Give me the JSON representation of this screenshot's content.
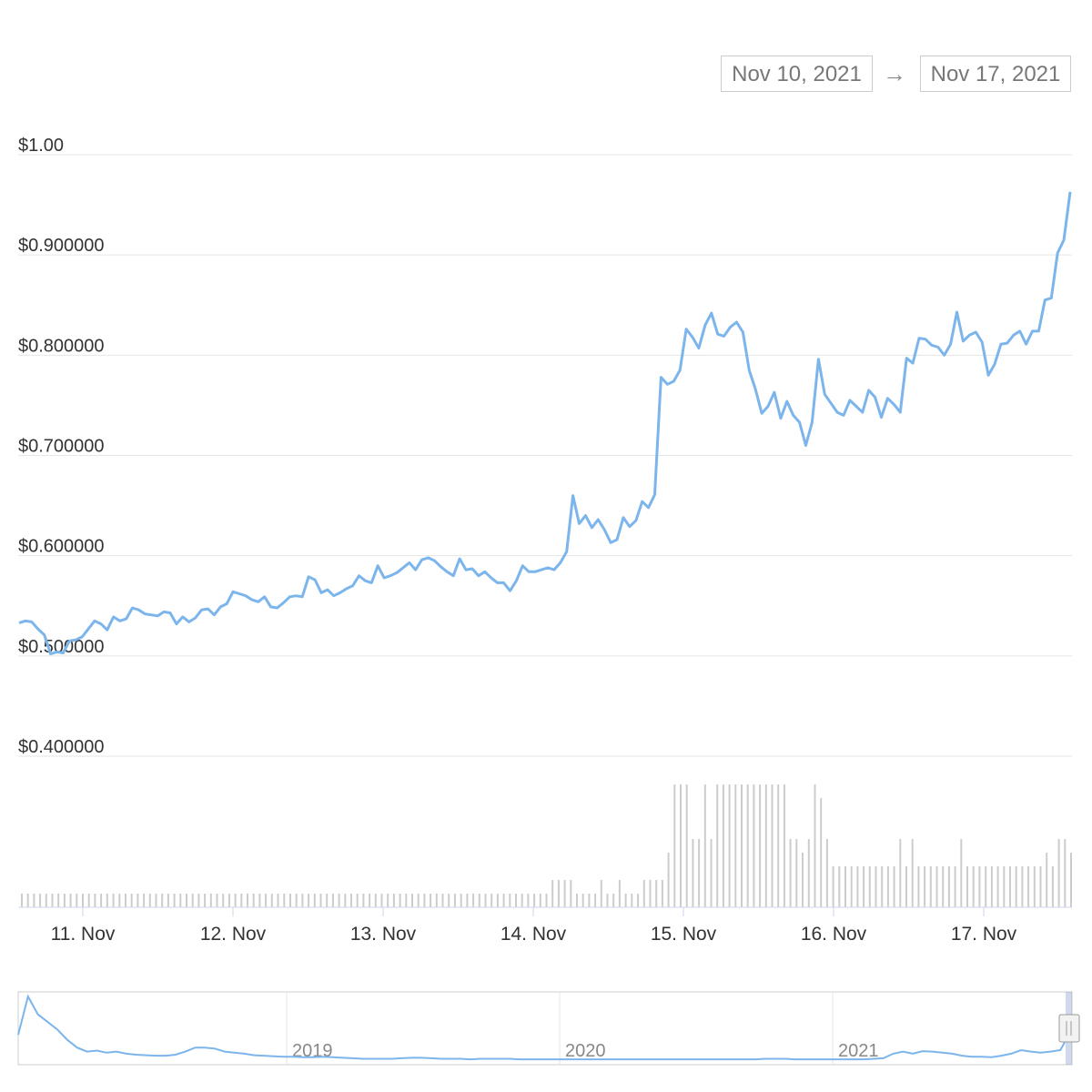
{
  "range_selector": {
    "from": "Nov 10, 2021",
    "arrow": "→",
    "to": "Nov 17, 2021"
  },
  "colors": {
    "line": "#7cb5ec",
    "grid": "#e6e6e6",
    "volume": "#cccccc",
    "navigator_line": "#7cb5ec"
  },
  "chart_data": {
    "type": "line",
    "x_start": "Nov 10, 2021",
    "x_end": "Nov 17, 2021",
    "x_ticks": [
      "11. Nov",
      "12. Nov",
      "13. Nov",
      "14. Nov",
      "15. Nov",
      "16. Nov",
      "17. Nov"
    ],
    "y_ticks": [
      "$0.400000",
      "$0.500000",
      "$0.600000",
      "$0.700000",
      "$0.800000",
      "$0.900000",
      "$1.00"
    ],
    "y_tick_values": [
      0.4,
      0.5,
      0.6,
      0.7,
      0.8,
      0.9,
      1.0
    ],
    "ylim": [
      0.4,
      1.0
    ],
    "grid": true,
    "series": [
      {
        "values": [
          0.533,
          0.535,
          0.534,
          0.527,
          0.521,
          0.502,
          0.504,
          0.503,
          0.515,
          0.516,
          0.519,
          0.527,
          0.535,
          0.532,
          0.526,
          0.539,
          0.535,
          0.537,
          0.548,
          0.546,
          0.542,
          0.541,
          0.54,
          0.544,
          0.543,
          0.532,
          0.539,
          0.534,
          0.538,
          0.546,
          0.547,
          0.541,
          0.549,
          0.552,
          0.564,
          0.562,
          0.56,
          0.556,
          0.554,
          0.559,
          0.549,
          0.548,
          0.553,
          0.559,
          0.56,
          0.559,
          0.579,
          0.576,
          0.563,
          0.566,
          0.56,
          0.563,
          0.567,
          0.57,
          0.58,
          0.575,
          0.573,
          0.59,
          0.578,
          0.58,
          0.583,
          0.588,
          0.593,
          0.586,
          0.596,
          0.598,
          0.595,
          0.589,
          0.584,
          0.58,
          0.597,
          0.586,
          0.587,
          0.58,
          0.584,
          0.578,
          0.573,
          0.573,
          0.565,
          0.575,
          0.59,
          0.584,
          0.584,
          0.586,
          0.588,
          0.586,
          0.593,
          0.604,
          0.66,
          0.632,
          0.64,
          0.628,
          0.636,
          0.626,
          0.613,
          0.616,
          0.638,
          0.629,
          0.635,
          0.654,
          0.648,
          0.661,
          0.778,
          0.771,
          0.774,
          0.785,
          0.826,
          0.818,
          0.807,
          0.83,
          0.842,
          0.821,
          0.819,
          0.828,
          0.833,
          0.823,
          0.785,
          0.766,
          0.742,
          0.749,
          0.763,
          0.737,
          0.754,
          0.74,
          0.733,
          0.71,
          0.733,
          0.796,
          0.761,
          0.752,
          0.743,
          0.74,
          0.755,
          0.749,
          0.743,
          0.765,
          0.758,
          0.738,
          0.757,
          0.751,
          0.743,
          0.797,
          0.792,
          0.817,
          0.816,
          0.81,
          0.808,
          0.8,
          0.811,
          0.843,
          0.814,
          0.82,
          0.823,
          0.813,
          0.78,
          0.791,
          0.811,
          0.812,
          0.82,
          0.824,
          0.811,
          0.824,
          0.824,
          0.855,
          0.857,
          0.902,
          0.915,
          0.963
        ]
      }
    ],
    "volume": [
      1,
      1,
      1,
      1,
      1,
      1,
      1,
      1,
      1,
      1,
      1,
      1,
      1,
      1,
      1,
      1,
      1,
      1,
      1,
      1,
      1,
      1,
      1,
      1,
      1,
      1,
      1,
      1,
      1,
      1,
      1,
      1,
      1,
      1,
      1,
      1,
      1,
      1,
      1,
      1,
      1,
      1,
      1,
      1,
      1,
      1,
      1,
      1,
      1,
      1,
      1,
      1,
      1,
      1,
      1,
      1,
      1,
      1,
      1,
      1,
      1,
      1,
      1,
      1,
      1,
      1,
      1,
      1,
      1,
      1,
      1,
      1,
      1,
      1,
      1,
      1,
      1,
      1,
      1,
      1,
      1,
      1,
      1,
      1,
      1,
      1,
      1,
      2,
      2,
      2,
      2,
      1,
      1,
      1,
      1,
      2,
      1,
      1,
      2,
      1,
      1,
      1,
      2,
      2,
      2,
      2,
      4,
      9,
      9,
      9,
      5,
      5,
      9,
      5,
      9,
      9,
      9,
      9,
      9,
      9,
      9,
      9,
      9,
      9,
      9,
      9,
      5,
      5,
      4,
      5,
      9,
      8,
      5,
      3,
      3,
      3,
      3,
      3,
      3,
      3,
      3,
      3,
      3,
      3,
      5,
      3,
      5,
      3,
      3,
      3,
      3,
      3,
      3,
      3,
      5,
      3,
      3,
      3,
      3,
      3,
      3,
      3,
      3,
      3,
      3,
      3,
      3,
      3,
      4,
      3,
      5,
      5,
      4
    ],
    "volume_units": "relative",
    "navigator": {
      "x_labels": [
        "2019",
        "2020",
        "2021"
      ],
      "values": [
        0.55,
        1.3,
        0.95,
        0.8,
        0.65,
        0.45,
        0.3,
        0.22,
        0.24,
        0.2,
        0.22,
        0.18,
        0.16,
        0.15,
        0.14,
        0.14,
        0.16,
        0.22,
        0.3,
        0.3,
        0.28,
        0.22,
        0.2,
        0.18,
        0.15,
        0.14,
        0.13,
        0.12,
        0.12,
        0.11,
        0.11,
        0.12,
        0.11,
        0.1,
        0.09,
        0.08,
        0.08,
        0.08,
        0.08,
        0.09,
        0.1,
        0.1,
        0.09,
        0.08,
        0.08,
        0.08,
        0.07,
        0.08,
        0.08,
        0.08,
        0.08,
        0.07,
        0.07,
        0.07,
        0.07,
        0.07,
        0.07,
        0.07,
        0.07,
        0.07,
        0.07,
        0.07,
        0.07,
        0.07,
        0.07,
        0.07,
        0.07,
        0.07,
        0.07,
        0.07,
        0.07,
        0.07,
        0.07,
        0.07,
        0.07,
        0.07,
        0.08,
        0.08,
        0.08,
        0.07,
        0.07,
        0.07,
        0.07,
        0.07,
        0.07,
        0.07,
        0.07,
        0.08,
        0.09,
        0.18,
        0.22,
        0.18,
        0.23,
        0.22,
        0.2,
        0.18,
        0.14,
        0.12,
        0.12,
        0.11,
        0.14,
        0.18,
        0.25,
        0.22,
        0.2,
        0.22,
        0.25,
        0.6
      ]
    }
  }
}
